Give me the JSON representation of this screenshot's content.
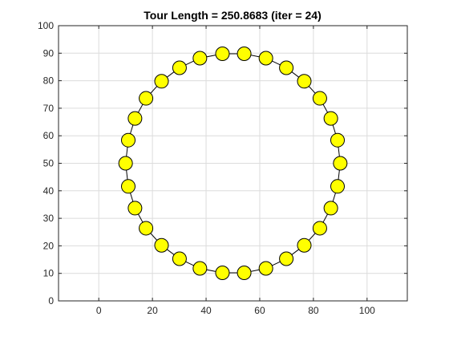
{
  "chart_data": {
    "type": "scatter",
    "title": "Tour Length = 250.8683 (iter = 24)",
    "xlabel": "",
    "ylabel": "",
    "xlim": [
      -15,
      115
    ],
    "ylim": [
      0,
      100
    ],
    "x_ticks": [
      "0",
      "20",
      "40",
      "60",
      "80",
      "100"
    ],
    "y_ticks": [
      "0",
      "10",
      "20",
      "30",
      "40",
      "50",
      "60",
      "70",
      "80",
      "90",
      "100"
    ],
    "grid": true,
    "legend": "none",
    "marker_color": "#ffff00",
    "marker_edge_color": "#000000",
    "line_color": "#000000",
    "closed_tour": true,
    "points": [
      {
        "x": 46.1,
        "y": 89.8
      },
      {
        "x": 54.2,
        "y": 89.8
      },
      {
        "x": 62.3,
        "y": 88.2
      },
      {
        "x": 69.9,
        "y": 84.7
      },
      {
        "x": 76.6,
        "y": 79.8
      },
      {
        "x": 82.4,
        "y": 73.6
      },
      {
        "x": 86.5,
        "y": 66.3
      },
      {
        "x": 89.0,
        "y": 58.4
      },
      {
        "x": 90.0,
        "y": 50.0
      },
      {
        "x": 89.0,
        "y": 41.6
      },
      {
        "x": 86.5,
        "y": 33.7
      },
      {
        "x": 82.4,
        "y": 26.4
      },
      {
        "x": 76.6,
        "y": 20.2
      },
      {
        "x": 69.9,
        "y": 15.3
      },
      {
        "x": 62.3,
        "y": 11.8
      },
      {
        "x": 54.2,
        "y": 10.2
      },
      {
        "x": 46.1,
        "y": 10.2
      },
      {
        "x": 37.7,
        "y": 11.8
      },
      {
        "x": 30.1,
        "y": 15.3
      },
      {
        "x": 23.4,
        "y": 20.2
      },
      {
        "x": 17.6,
        "y": 26.4
      },
      {
        "x": 13.5,
        "y": 33.7
      },
      {
        "x": 11.0,
        "y": 41.6
      },
      {
        "x": 10.0,
        "y": 50.0
      },
      {
        "x": 11.0,
        "y": 58.4
      },
      {
        "x": 13.5,
        "y": 66.3
      },
      {
        "x": 17.6,
        "y": 73.6
      },
      {
        "x": 23.4,
        "y": 79.8
      },
      {
        "x": 30.1,
        "y": 84.7
      },
      {
        "x": 37.7,
        "y": 88.2
      }
    ]
  }
}
